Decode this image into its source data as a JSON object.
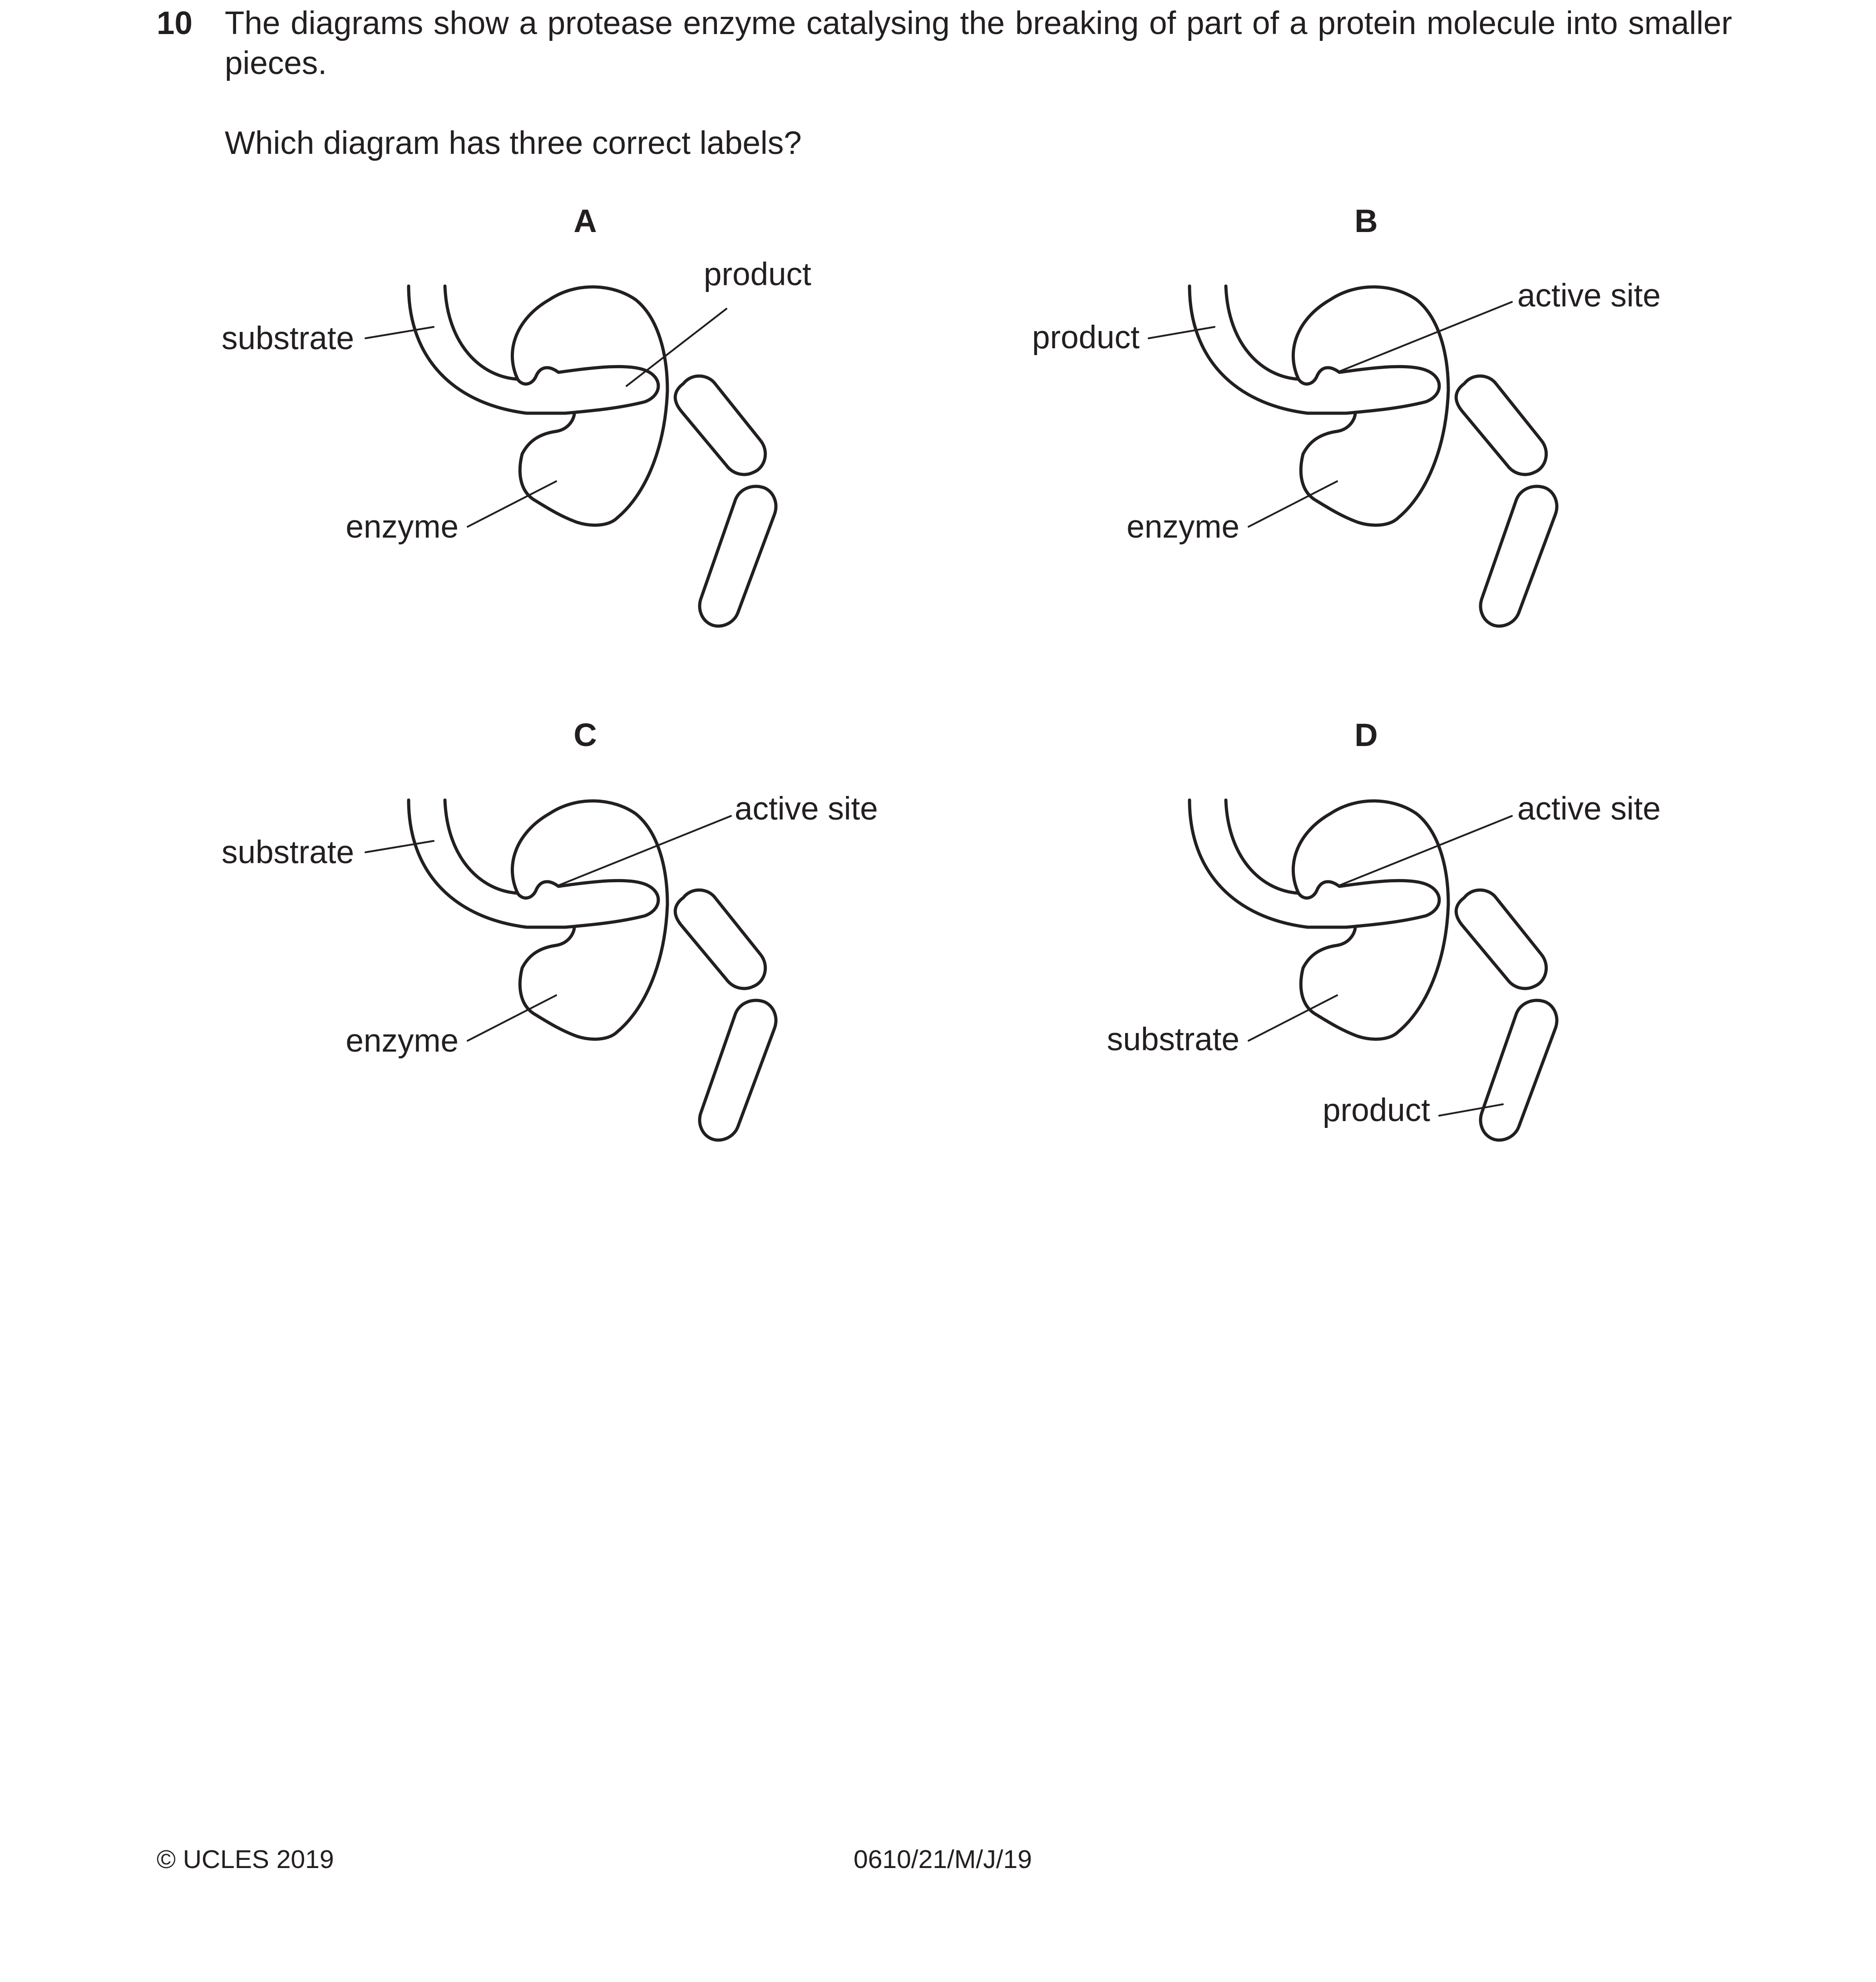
{
  "question": {
    "number": "10",
    "intro": "The diagrams show a protease enzyme catalysing the breaking of part of a protein molecule into smaller pieces.",
    "ask": "Which diagram has three correct labels?"
  },
  "diagrams": [
    {
      "letter": "A",
      "labels": {
        "l1": "substrate",
        "l2": "product",
        "l3": "enzyme"
      }
    },
    {
      "letter": "B",
      "labels": {
        "l1": "product",
        "l2": "active site",
        "l3": "enzyme"
      }
    },
    {
      "letter": "C",
      "labels": {
        "l1": "substrate",
        "l2": "active site",
        "l3": "enzyme"
      }
    },
    {
      "letter": "D",
      "labels": {
        "l1": "active site",
        "l2": "substrate",
        "l3": "product"
      }
    }
  ],
  "footer": {
    "copyright": "© UCLES 2019",
    "code": "0610/21/M/J/19"
  }
}
